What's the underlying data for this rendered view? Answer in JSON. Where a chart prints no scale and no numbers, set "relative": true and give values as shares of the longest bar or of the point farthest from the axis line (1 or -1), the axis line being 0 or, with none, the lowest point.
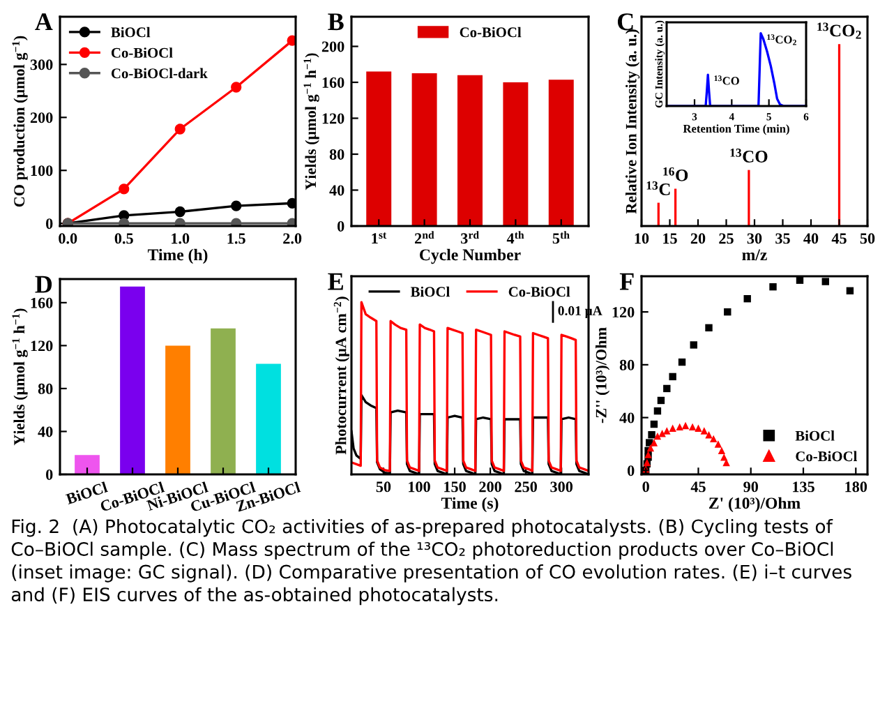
{
  "chart_data": [
    {
      "type": "line",
      "xlabel": "Time (h)",
      "ylabel": "CO production (μmol g$^{−1}$)",
      "x": [
        0,
        0.5,
        1,
        1.5,
        2
      ],
      "xlim": [
        -0.07,
        2.03
      ],
      "ylim": [
        -5,
        390
      ],
      "xticks": [
        {
          "value": 0,
          "label": "0.0"
        },
        0.5,
        {
          "value": 1,
          "label": "1.0"
        },
        1.5,
        {
          "value": 2,
          "label": "2.0"
        }
      ],
      "yticks": [
        0,
        100,
        200,
        300
      ],
      "marker": "circle",
      "legend": "top left",
      "annotations": [
        "A"
      ],
      "series": [
        {
          "name": "BiOCl",
          "color": "#000000",
          "values": [
            0,
            15,
            22,
            33,
            38
          ]
        },
        {
          "name": "Co-BiOCl",
          "color": "#ff0000",
          "values": [
            0,
            65,
            178,
            257,
            345
          ]
        },
        {
          "name": "Co-BiOCl-dark",
          "color": "#555555",
          "values": [
            0,
            0,
            0,
            0,
            0
          ]
        }
      ]
    },
    {
      "type": "bar",
      "xlabel": "Cycle Number",
      "ylabel": "Yields (μmol g$^{−1}$ h$^{−1}$)",
      "categories": [
        "1$^{st}$",
        "2$^{nd}$",
        "3$^{rd}$",
        "4$^{th}$",
        "5$^{th}$"
      ],
      "ylim": [
        0,
        233
      ],
      "yticks": [
        0,
        40,
        80,
        120,
        160,
        200
      ],
      "legend": "top",
      "annotations": [
        "B"
      ],
      "series": [
        {
          "name": "Co-BiOCl",
          "color": "#dd0000",
          "values": [
            172,
            170,
            168,
            160,
            163
          ]
        }
      ]
    },
    {
      "type": "bar",
      "relative": true,
      "xlabel": "m/z",
      "ylabel": "Relative Ion Intensity (a. u.)",
      "x": [
        13,
        16,
        29,
        45
      ],
      "xlim": [
        10,
        50
      ],
      "xticks": [
        10,
        15,
        20,
        25,
        30,
        35,
        40,
        45,
        50
      ],
      "values": [
        0.128,
        0.205,
        0.308,
        1.0
      ],
      "color": "#ff0000",
      "annotations": [
        "C",
        {
          "text": "$^{13}$C",
          "x": 13,
          "y": 0.128
        },
        {
          "text": "$^{16}$O",
          "x": 16,
          "y": 0.205
        },
        {
          "text": "$^{13}$CO",
          "x": 29,
          "y": 0.308
        },
        {
          "text": "$^{13}$CO$_{2}$",
          "x": 45,
          "y": 1.0
        }
      ]
    },
    {
      "type": "line",
      "relative": true,
      "xlabel": "Retention Time (min)",
      "ylabel": "GC Intensity (a. u.)",
      "xlim": [
        2.25,
        6
      ],
      "xticks": [
        3,
        4,
        5,
        6
      ],
      "x": [
        2.25,
        3.3,
        3.33,
        3.36,
        3.39,
        3.42,
        4.72,
        4.75,
        4.78,
        4.85,
        4.95,
        5.05,
        5.15,
        5.22,
        5.3,
        5.4,
        6.0
      ],
      "values": [
        0,
        0,
        0.2,
        0.43,
        0.2,
        0,
        0,
        0.5,
        1.0,
        0.92,
        0.75,
        0.55,
        0.3,
        0.1,
        0.02,
        0,
        0
      ],
      "color": "#0000ff",
      "annotations": [
        {
          "text": "$^{13}$CO",
          "x": 3.36,
          "y": 0.43
        },
        {
          "text": "$^{13}$CO$_{2}$",
          "x": 4.78,
          "y": 1.0
        }
      ]
    },
    {
      "type": "bar",
      "ylabel": "Yields (μmol g$^{−1}$ h$^{−1}$)",
      "categories": [
        "BiOCl",
        "Co-BiOCl",
        "Ni-BiOCl",
        "Cu-BiOCl",
        "Zn-BiOCl"
      ],
      "ylim": [
        0,
        182
      ],
      "yticks": [
        0,
        40,
        80,
        120,
        160
      ],
      "annotations": [
        "D"
      ],
      "values": [
        18,
        175,
        120,
        136,
        103
      ],
      "colors": [
        "#ee55ee",
        "#7a00ee",
        "#ff7f00",
        "#8fb050",
        "#00e0e0"
      ]
    },
    {
      "type": "line",
      "relative": true,
      "xlabel": "Time (s)",
      "ylabel": "Photocurrent (μA cm$^{−2}$)",
      "xlim": [
        5,
        338
      ],
      "xticks": [
        50,
        100,
        150,
        200,
        250,
        300
      ],
      "legend": "top",
      "annotations": [
        "E",
        "0.01 μA"
      ],
      "series": [
        {
          "name": "BiOCl",
          "color": "#000000",
          "x": [
            5,
            8,
            12,
            18,
            19,
            25,
            32,
            40,
            41,
            45,
            52,
            59,
            60,
            70,
            82,
            83,
            87,
            94,
            100,
            101,
            111,
            121,
            122,
            126,
            133,
            139,
            140,
            150,
            161,
            162,
            166,
            173,
            179,
            180,
            190,
            201,
            202,
            206,
            213,
            219,
            220,
            230,
            242,
            243,
            247,
            254,
            259,
            260,
            270,
            281,
            282,
            286,
            293,
            299,
            300,
            310,
            320,
            321,
            325,
            332,
            338
          ],
          "values": [
            0.25,
            0.15,
            0.11,
            0.09,
            0.46,
            0.42,
            0.4,
            0.385,
            0.07,
            0.03,
            0.01,
            0.005,
            0.36,
            0.37,
            0.36,
            0.06,
            0.02,
            0.01,
            0,
            0.35,
            0.35,
            0.35,
            0.06,
            0.02,
            0.01,
            0,
            0.33,
            0.34,
            0.33,
            0.06,
            0.02,
            0.01,
            0,
            0.32,
            0.33,
            0.32,
            0.06,
            0.02,
            0.01,
            0,
            0.32,
            0.32,
            0.32,
            0.06,
            0.02,
            0.01,
            0,
            0.33,
            0.33,
            0.33,
            0.06,
            0.02,
            0.01,
            0,
            0.32,
            0.33,
            0.32,
            0.06,
            0.02,
            0.01,
            0
          ]
        },
        {
          "name": "Co-BiOCl",
          "color": "#ff0000",
          "x": [
            5,
            18,
            19,
            25,
            32,
            40,
            41,
            45,
            52,
            59,
            60,
            66,
            74,
            82,
            83,
            87,
            94,
            100,
            101,
            108,
            115,
            121,
            122,
            126,
            133,
            139,
            140,
            147,
            154,
            161,
            162,
            166,
            173,
            179,
            180,
            187,
            194,
            201,
            202,
            206,
            213,
            219,
            220,
            227,
            234,
            242,
            243,
            247,
            254,
            259,
            260,
            267,
            274,
            281,
            282,
            286,
            293,
            299,
            300,
            307,
            314,
            320,
            321,
            325,
            332,
            338
          ],
          "values": [
            0.07,
            0.05,
            1.0,
            0.93,
            0.91,
            0.89,
            0.08,
            0.04,
            0.025,
            0.02,
            0.89,
            0.87,
            0.85,
            0.84,
            0.08,
            0.04,
            0.03,
            0.02,
            0.87,
            0.85,
            0.84,
            0.83,
            0.08,
            0.04,
            0.03,
            0.02,
            0.85,
            0.84,
            0.83,
            0.82,
            0.08,
            0.04,
            0.03,
            0.02,
            0.84,
            0.83,
            0.82,
            0.81,
            0.08,
            0.04,
            0.03,
            0.02,
            0.83,
            0.82,
            0.81,
            0.8,
            0.08,
            0.04,
            0.03,
            0.02,
            0.82,
            0.81,
            0.8,
            0.79,
            0.08,
            0.04,
            0.03,
            0.02,
            0.81,
            0.8,
            0.79,
            0.78,
            0.08,
            0.04,
            0.03,
            0.02
          ]
        }
      ]
    },
    {
      "type": "scatter",
      "xlabel": "Z' (10³)/Ohm",
      "ylabel": "-Z'' (10³)/Ohm",
      "xlim": [
        -3.7,
        190
      ],
      "ylim": [
        -3,
        147
      ],
      "xticks": [
        0,
        45,
        90,
        135,
        180
      ],
      "yticks": [
        0,
        40,
        80,
        120
      ],
      "legend": "bottom right",
      "annotations": [
        "F",
        "Fig. 2  (A) Photocatalytic CO₂ activities of as-prepared photocatalysts. (B) Cycling tests of Co–BiOCl sample. (C) Mass spectrum of the ¹³CO₂ photoreduction products over Co–BiOCl (inset image: GC signal). (D) Comparative presentation of CO evolution rates. (E) i–t curves and (F) EIS curves of the as-obtained photocatalysts."
      ],
      "series": [
        {
          "name": "BiOCl",
          "color": "#000000",
          "marker": "square",
          "x": [
            0,
            1,
            2,
            2,
            3,
            5,
            7,
            10,
            13,
            18,
            23,
            31,
            41,
            54,
            70,
            87,
            109,
            132,
            154,
            175
          ],
          "values": [
            0,
            5,
            10,
            15,
            21,
            27,
            35,
            45,
            53,
            62,
            71,
            82,
            95,
            108,
            120,
            130,
            139,
            144,
            143,
            136
          ]
        },
        {
          "name": "Co-BiOCl",
          "color": "#ff0000",
          "marker": "triangle",
          "x": [
            0,
            1,
            2,
            4,
            7,
            10,
            14,
            18,
            23,
            29,
            34,
            40,
            45,
            50,
            54,
            58,
            62,
            65,
            67,
            69
          ],
          "values": [
            1,
            6,
            12,
            17,
            21,
            26,
            28,
            30,
            32,
            33,
            34,
            33,
            32,
            30,
            27,
            24,
            20,
            15,
            10,
            6
          ]
        }
      ]
    }
  ]
}
